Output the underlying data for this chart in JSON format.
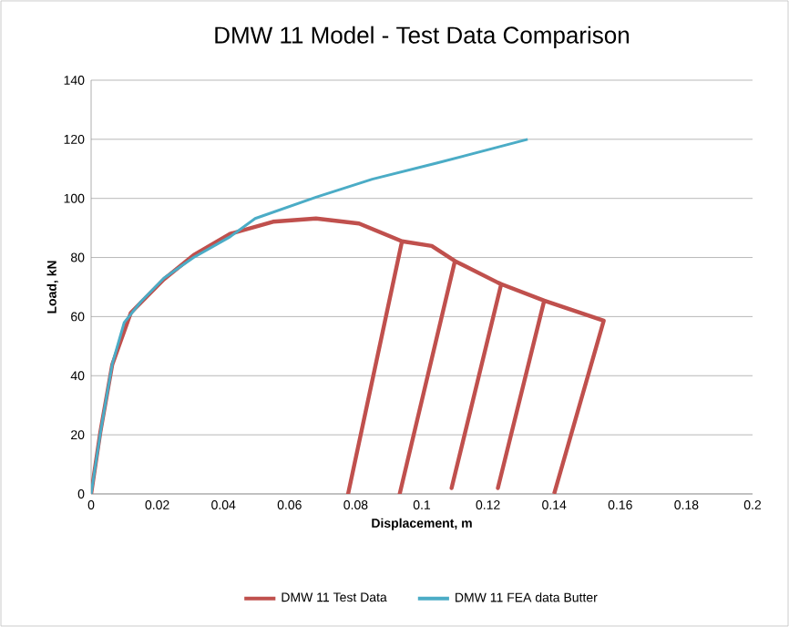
{
  "chart_data": {
    "type": "line",
    "title": "DMW 11 Model - Test Data Comparison",
    "xlabel": "Displacement, m",
    "ylabel": "Load, kN",
    "xlim": [
      0,
      0.2
    ],
    "xticks": [
      0,
      0.02,
      0.04,
      0.06,
      0.08,
      0.1,
      0.12,
      0.14,
      0.16,
      0.18,
      0.2
    ],
    "ylim": [
      0,
      140
    ],
    "yticks": [
      0,
      20,
      40,
      60,
      80,
      100,
      120,
      140
    ],
    "grid": "y",
    "legend": "bottom",
    "marker": "none",
    "line_style": "solid",
    "series": [
      {
        "name": "DMW 11 Test Data",
        "color": "#c0504d",
        "x": [
          0,
          0.0028,
          0.0064,
          0.012,
          0.022,
          0.031,
          0.042,
          0.055,
          0.068,
          0.081,
          0.094,
          0.0777,
          0.094,
          0.103,
          0.11,
          0.0933,
          0.11,
          0.123,
          0.124,
          0.109,
          0.124,
          0.137,
          0.123,
          0.137,
          0.155,
          0.14
        ],
        "values": [
          0,
          21,
          43.8,
          61.3,
          72.6,
          80.8,
          88,
          92.1,
          93.2,
          91.5,
          85.5,
          0,
          85.5,
          83.9,
          78.8,
          0,
          78.8,
          71.5,
          71,
          2,
          71,
          65.4,
          2,
          65.4,
          58.6,
          0
        ]
      },
      {
        "name": "DMW 11 FEA data Butter",
        "color": "#4bacc6",
        "x": [
          0,
          0.003,
          0.0064,
          0.01,
          0.015,
          0.022,
          0.031,
          0.042,
          0.0496,
          0.068,
          0.085,
          0.1047,
          0.132
        ],
        "values": [
          0,
          22,
          44,
          58,
          65,
          73,
          80,
          87,
          93.2,
          100.4,
          106.5,
          112,
          120
        ]
      }
    ]
  }
}
